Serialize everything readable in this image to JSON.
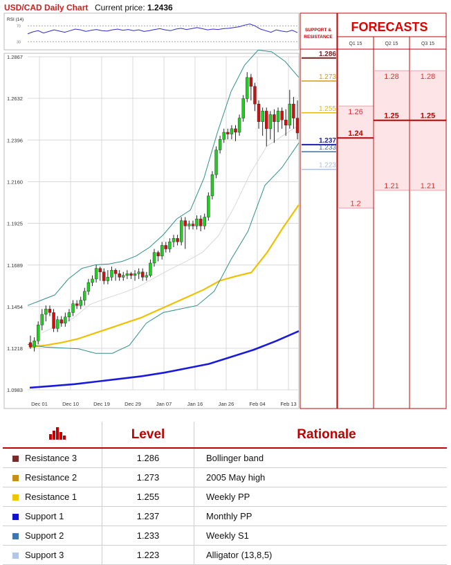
{
  "header": {
    "title": "USD/CAD Daily Chart",
    "price_label": "Current price:",
    "price_value": "1.2436"
  },
  "chart_data": {
    "type": "line",
    "title": "USD/CAD Daily Chart",
    "ylim": [
      1.0983,
      1.2867
    ],
    "y_ticks": [
      "1.2867",
      "1.2632",
      "1.2396",
      "1.2160",
      "1.1925",
      "1.1689",
      "1.1454",
      "1.1218",
      "1.0983"
    ],
    "x_ticks": [
      "Dec 01",
      "Dec 10",
      "Dec 19",
      "Dec 29",
      "Jan 07",
      "Jan 16",
      "Jan 26",
      "Feb 04",
      "Feb 13"
    ],
    "grid": true,
    "candles": [
      [
        1.125,
        1.1225,
        1.1215,
        1.129
      ],
      [
        1.1225,
        1.126,
        1.12,
        1.128
      ],
      [
        1.126,
        1.135,
        1.124,
        1.137
      ],
      [
        1.135,
        1.141,
        1.132,
        1.144
      ],
      [
        1.141,
        1.144,
        1.137,
        1.146
      ],
      [
        1.144,
        1.142,
        1.14,
        1.146
      ],
      [
        1.142,
        1.133,
        1.131,
        1.144
      ],
      [
        1.133,
        1.138,
        1.131,
        1.14
      ],
      [
        1.138,
        1.136,
        1.134,
        1.14
      ],
      [
        1.136,
        1.1395,
        1.134,
        1.142
      ],
      [
        1.1395,
        1.142,
        1.137,
        1.144
      ],
      [
        1.142,
        1.147,
        1.14,
        1.149
      ],
      [
        1.147,
        1.146,
        1.144,
        1.149
      ],
      [
        1.146,
        1.149,
        1.144,
        1.151
      ],
      [
        1.149,
        1.154,
        1.146,
        1.156
      ],
      [
        1.154,
        1.159,
        1.152,
        1.161
      ],
      [
        1.159,
        1.161,
        1.157,
        1.163
      ],
      [
        1.161,
        1.167,
        1.159,
        1.169
      ],
      [
        1.167,
        1.165,
        1.16,
        1.168
      ],
      [
        1.165,
        1.16,
        1.158,
        1.167
      ],
      [
        1.16,
        1.162,
        1.158,
        1.166
      ],
      [
        1.162,
        1.166,
        1.16,
        1.168
      ],
      [
        1.166,
        1.164,
        1.16,
        1.167
      ],
      [
        1.164,
        1.162,
        1.16,
        1.166
      ],
      [
        1.162,
        1.163,
        1.16,
        1.165
      ],
      [
        1.163,
        1.164,
        1.161,
        1.166
      ],
      [
        1.164,
        1.163,
        1.161,
        1.165
      ],
      [
        1.163,
        1.164,
        1.16,
        1.166
      ],
      [
        1.164,
        1.165,
        1.161,
        1.167
      ],
      [
        1.165,
        1.162,
        1.16,
        1.167
      ],
      [
        1.162,
        1.163,
        1.16,
        1.165
      ],
      [
        1.163,
        1.17,
        1.162,
        1.172
      ],
      [
        1.17,
        1.176,
        1.168,
        1.178
      ],
      [
        1.176,
        1.174,
        1.171,
        1.177
      ],
      [
        1.174,
        1.18,
        1.172,
        1.182
      ],
      [
        1.18,
        1.178,
        1.176,
        1.182
      ],
      [
        1.178,
        1.182,
        1.176,
        1.184
      ],
      [
        1.182,
        1.184,
        1.179,
        1.186
      ],
      [
        1.184,
        1.182,
        1.18,
        1.186
      ],
      [
        1.182,
        1.194,
        1.18,
        1.196
      ],
      [
        1.194,
        1.191,
        1.178,
        1.196
      ],
      [
        1.191,
        1.192,
        1.189,
        1.194
      ],
      [
        1.192,
        1.191,
        1.189,
        1.194
      ],
      [
        1.191,
        1.195,
        1.189,
        1.197
      ],
      [
        1.195,
        1.191,
        1.188,
        1.197
      ],
      [
        1.191,
        1.196,
        1.189,
        1.198
      ],
      [
        1.196,
        1.208,
        1.194,
        1.21
      ],
      [
        1.208,
        1.22,
        1.206,
        1.222
      ],
      [
        1.22,
        1.234,
        1.218,
        1.236
      ],
      [
        1.234,
        1.24,
        1.232,
        1.242
      ],
      [
        1.24,
        1.244,
        1.238,
        1.246
      ],
      [
        1.244,
        1.243,
        1.24,
        1.246
      ],
      [
        1.243,
        1.246,
        1.24,
        1.248
      ],
      [
        1.246,
        1.244,
        1.239,
        1.248
      ],
      [
        1.244,
        1.252,
        1.242,
        1.254
      ],
      [
        1.252,
        1.263,
        1.25,
        1.265
      ],
      [
        1.263,
        1.275,
        1.261,
        1.278
      ],
      [
        1.275,
        1.27,
        1.262,
        1.277
      ],
      [
        1.27,
        1.26,
        1.256,
        1.272
      ],
      [
        1.26,
        1.25,
        1.246,
        1.262
      ],
      [
        1.25,
        1.256,
        1.242,
        1.258
      ],
      [
        1.256,
        1.246,
        1.236,
        1.258
      ],
      [
        1.246,
        1.254,
        1.24,
        1.256
      ],
      [
        1.254,
        1.25,
        1.238,
        1.257
      ],
      [
        1.25,
        1.256,
        1.244,
        1.258
      ],
      [
        1.256,
        1.251,
        1.246,
        1.258
      ],
      [
        1.251,
        1.248,
        1.242,
        1.257
      ],
      [
        1.248,
        1.26,
        1.246,
        1.268
      ],
      [
        1.26,
        1.252,
        1.246,
        1.264
      ],
      [
        1.252,
        1.2436,
        1.24,
        1.262
      ]
    ],
    "sma_yellow": [
      1.1225,
      1.1235,
      1.125,
      1.127,
      1.13,
      1.133,
      1.136,
      1.139,
      1.143,
      1.147,
      1.151,
      1.155,
      1.16,
      1.1625,
      1.1647,
      1.176,
      1.19,
      1.203
    ],
    "sma_blue": [
      1.0995,
      1.1005,
      1.1015,
      1.103,
      1.1045,
      1.106,
      1.108,
      1.1105,
      1.113,
      1.117,
      1.121,
      1.126,
      1.1315
    ],
    "bb_upper": [
      1.146,
      1.149,
      1.152,
      1.161,
      1.167,
      1.169,
      1.1695,
      1.171,
      1.174,
      1.179,
      1.186,
      1.195,
      1.2,
      1.218,
      1.244,
      1.267,
      1.282,
      1.2905,
      1.2895,
      1.284,
      1.275
    ],
    "bb_lower": [
      1.124,
      1.1225,
      1.122,
      1.1215,
      1.119,
      1.119,
      1.1235,
      1.136,
      1.142,
      1.144,
      1.146,
      1.154,
      1.172,
      1.188,
      1.214,
      1.224,
      1.238
    ],
    "bb_mid": [
      1.1305,
      1.1345,
      1.139,
      1.1465,
      1.15,
      1.153,
      1.1565,
      1.1615,
      1.1665,
      1.171,
      1.176,
      1.1855,
      1.202,
      1.221,
      1.236,
      1.242,
      1.248
    ]
  },
  "rsi": {
    "label": "RSI (14)",
    "ticks": [
      "70",
      "30"
    ],
    "values": [
      50,
      55,
      58,
      52,
      56,
      60,
      57,
      54,
      58,
      62,
      60,
      56,
      59,
      61,
      58,
      57,
      60,
      62,
      59,
      61,
      58,
      60,
      56,
      58,
      61,
      63,
      60,
      58,
      62,
      64,
      61,
      63,
      66,
      63,
      60,
      62,
      61,
      63,
      64,
      66,
      68,
      72,
      75,
      70,
      62,
      58,
      54,
      60,
      57,
      55,
      59,
      53
    ]
  },
  "sr_panel": {
    "heading_line1": "SUPPORT &",
    "heading_line2": "RESISTANCE",
    "levels": [
      {
        "label": "1.286",
        "value": 1.286,
        "color": "#7a1f1f",
        "bold": true
      },
      {
        "label": "1.273",
        "value": 1.273,
        "color": "#d49a12",
        "bold": false
      },
      {
        "label": "1.255",
        "value": 1.255,
        "color": "#e8b800",
        "bold": false
      },
      {
        "label": "1.237",
        "value": 1.237,
        "color": "#1d1da8",
        "bold": true
      },
      {
        "label": "1.233",
        "value": 1.233,
        "color": "#3a6fa8",
        "bold": false
      },
      {
        "label": "1.223",
        "value": 1.223,
        "color": "#a9bfe0",
        "bold": false
      }
    ]
  },
  "forecasts": {
    "title": "FORECASTS",
    "columns": [
      {
        "label": "Q1 15",
        "high": "1.26",
        "base": "1.24",
        "low": "1.2",
        "high_value": 1.26,
        "base_value": 1.24,
        "low_value": 1.2
      },
      {
        "label": "Q2 15",
        "high": "1.28",
        "base": "1.25",
        "low": "1.21",
        "high_value": 1.28,
        "base_value": 1.25,
        "low_value": 1.21
      },
      {
        "label": "Q3 15",
        "high": "1.28",
        "base": "1.25",
        "low": "1.21",
        "high_value": 1.28,
        "base_value": 1.25,
        "low_value": 1.21
      }
    ]
  },
  "table": {
    "icon": "bar-chart-icon",
    "col_level": "Level",
    "col_rationale": "Rationale",
    "rows": [
      {
        "name": "Resistance 3",
        "level": "1.286",
        "rationale": "Bollinger band",
        "color": "#7a2a2a"
      },
      {
        "name": "Resistance 2",
        "level": "1.273",
        "rationale": "2005 May high",
        "color": "#c48f12"
      },
      {
        "name": "Resistance 1",
        "level": "1.255",
        "rationale": "Weekly PP",
        "color": "#f2c400"
      },
      {
        "name": "Support 1",
        "level": "1.237",
        "rationale": "Monthly PP",
        "color": "#1010d0"
      },
      {
        "name": "Support 2",
        "level": "1.233",
        "rationale": "Weekly S1",
        "color": "#3d77b3"
      },
      {
        "name": "Support 3",
        "level": "1.223",
        "rationale": "Alligator (13,8,5)",
        "color": "#b3c6e6"
      }
    ]
  }
}
